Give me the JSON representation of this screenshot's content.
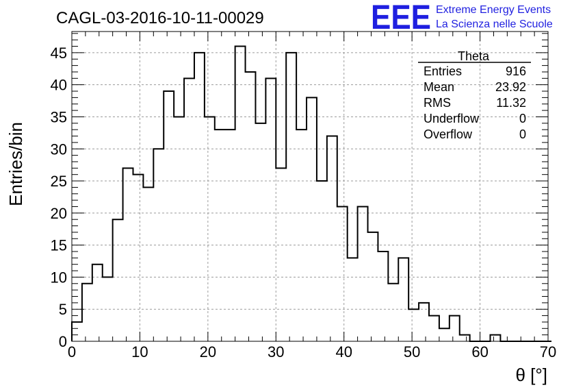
{
  "header": {
    "logo_text": "EEE",
    "logo_line1": "Extreme Energy Events",
    "logo_line2": "La Scienza nelle Scuole",
    "logo_color": "#1f1fe0"
  },
  "stats_box": {
    "title": "Theta",
    "rows": [
      {
        "label": "Entries",
        "value": "916"
      },
      {
        "label": "Mean",
        "value": "23.92"
      },
      {
        "label": "RMS",
        "value": "11.32"
      },
      {
        "label": "Underflow",
        "value": "0"
      },
      {
        "label": "Overflow",
        "value": "0"
      }
    ]
  },
  "chart_data": {
    "type": "bar",
    "style": "step-histogram",
    "title": "CAGL-03-2016-10-11-00029",
    "xlabel": "θ [°]",
    "ylabel": "Entries/bin",
    "xlim": [
      0,
      70
    ],
    "ylim": [
      0,
      48.3
    ],
    "x_ticks": [
      0,
      10,
      20,
      30,
      40,
      50,
      60,
      70
    ],
    "y_ticks": [
      0,
      5,
      10,
      15,
      20,
      25,
      30,
      35,
      40,
      45
    ],
    "grid": true,
    "bin_width": 1.5,
    "bin_edges_start": 0,
    "values": [
      3,
      9,
      12,
      10,
      19,
      27,
      26,
      24,
      30,
      39,
      35,
      41,
      45,
      35,
      33,
      33,
      46,
      42,
      34,
      41,
      27,
      45,
      33,
      38,
      25,
      32,
      21,
      13,
      21,
      17,
      14,
      9,
      13,
      5,
      6,
      4,
      2,
      4,
      1,
      0,
      0,
      1,
      0,
      0,
      0,
      0,
      0
    ],
    "line_color": "#000000"
  }
}
